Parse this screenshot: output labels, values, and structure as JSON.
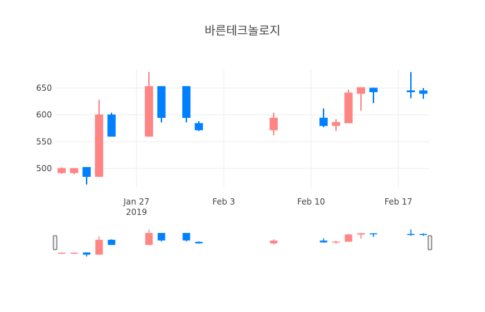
{
  "chart_data": {
    "type": "candlestick",
    "title": "바른테크놀로지",
    "xlabel": "",
    "ylabel": "",
    "ylim": [
      465,
      685
    ],
    "grid": true,
    "legend": "none",
    "x_tick_labels": [
      {
        "date": "2019-01-27",
        "lines": [
          "Jan 27",
          "2019"
        ]
      },
      {
        "date": "2019-02-03",
        "lines": [
          "Feb 3"
        ]
      },
      {
        "date": "2019-02-10",
        "lines": [
          "Feb 10"
        ]
      },
      {
        "date": "2019-02-17",
        "lines": [
          "Feb 17"
        ]
      }
    ],
    "y_ticks": [
      500,
      550,
      600,
      650
    ],
    "colors": {
      "up": "#ff8585",
      "down": "#0080ff"
    },
    "candles": [
      {
        "date": "2019-01-21",
        "open": 492,
        "high": 502,
        "low": 490,
        "close": 500
      },
      {
        "date": "2019-01-22",
        "open": 492,
        "high": 501,
        "low": 489,
        "close": 500
      },
      {
        "date": "2019-01-23",
        "open": 502,
        "high": 502,
        "low": 470,
        "close": 485
      },
      {
        "date": "2019-01-24",
        "open": 485,
        "high": 628,
        "low": 484,
        "close": 600
      },
      {
        "date": "2019-01-25",
        "open": 600,
        "high": 604,
        "low": 560,
        "close": 560
      },
      {
        "date": "2019-01-28",
        "open": 560,
        "high": 680,
        "low": 560,
        "close": 653
      },
      {
        "date": "2019-01-29",
        "open": 653,
        "high": 653,
        "low": 586,
        "close": 595
      },
      {
        "date": "2019-01-31",
        "open": 653,
        "high": 653,
        "low": 586,
        "close": 595
      },
      {
        "date": "2019-02-01",
        "open": 584,
        "high": 588,
        "low": 570,
        "close": 572
      },
      {
        "date": "2019-02-07",
        "open": 572,
        "high": 604,
        "low": 562,
        "close": 594
      },
      {
        "date": "2019-02-11",
        "open": 594,
        "high": 612,
        "low": 577,
        "close": 580
      },
      {
        "date": "2019-02-12",
        "open": 580,
        "high": 592,
        "low": 570,
        "close": 586
      },
      {
        "date": "2019-02-13",
        "open": 585,
        "high": 647,
        "low": 585,
        "close": 641
      },
      {
        "date": "2019-02-14",
        "open": 640,
        "high": 651,
        "low": 608,
        "close": 651
      },
      {
        "date": "2019-02-15",
        "open": 650,
        "high": 651,
        "low": 622,
        "close": 643
      },
      {
        "date": "2019-02-18",
        "open": 645,
        "high": 680,
        "low": 631,
        "close": 643
      },
      {
        "date": "2019-02-19",
        "open": 645,
        "high": 650,
        "low": 630,
        "close": 640
      }
    ]
  }
}
